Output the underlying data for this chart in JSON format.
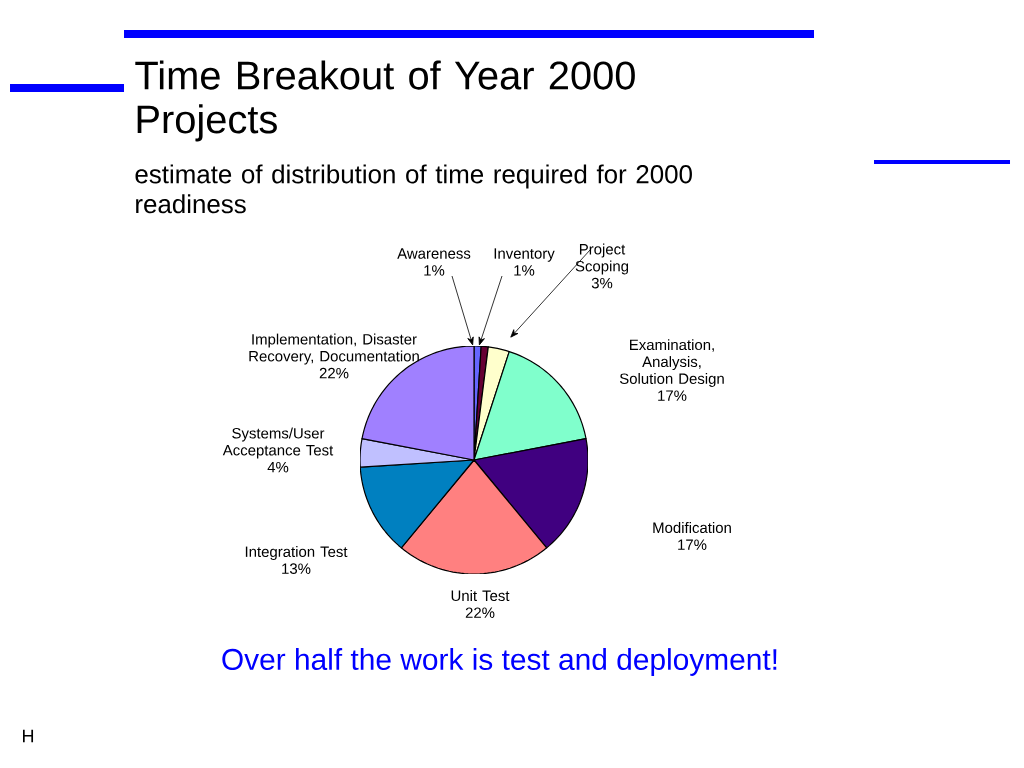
{
  "chart_data": {
    "type": "pie",
    "title": "Time Breakout of Year 2000 Projects",
    "subtitle": "estimate of distribution of time required for 2000 readiness",
    "categories": [
      "Awareness",
      "Inventory",
      "Project Scoping",
      "Examination, Analysis, Solution Design",
      "Modification",
      "Unit Test",
      "Integration Test",
      "Systems/User Acceptance Test",
      "Implementation, Disaster Recovery, Documentation"
    ],
    "values": [
      1,
      1,
      3,
      17,
      17,
      22,
      13,
      4,
      22
    ],
    "value_labels": [
      "1%",
      "1%",
      "3%",
      "17%",
      "17%",
      "22%",
      "13%",
      "4%",
      "22%"
    ],
    "colors": [
      "#6666ff",
      "#660033",
      "#ffffcc",
      "#80ffcc",
      "#400080",
      "#ff8080",
      "#0080c0",
      "#c0c0ff",
      "#a080ff"
    ],
    "annotations": [
      "Over half the work is test and deployment!",
      "H"
    ]
  }
}
